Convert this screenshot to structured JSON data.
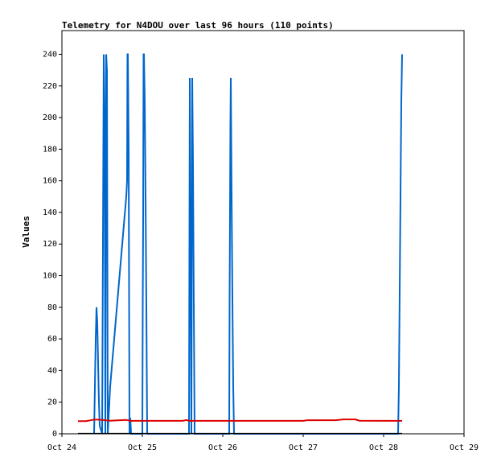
{
  "chart_data": {
    "type": "line",
    "title": "Telemetry for N4DOU over last 96 hours (110 points)",
    "xlabel": "",
    "ylabel": "Values",
    "x_ticks": [
      "Oct 24",
      "Oct 25",
      "Oct 26",
      "Oct 27",
      "Oct 28",
      "Oct 29"
    ],
    "x_range_days": [
      24,
      29
    ],
    "y_ticks": [
      0,
      20,
      40,
      60,
      80,
      100,
      120,
      140,
      160,
      180,
      200,
      220,
      240
    ],
    "ylim": [
      0,
      255
    ],
    "grid": false,
    "legend": "none",
    "series": [
      {
        "color": "#0066cc",
        "points": [
          [
            24.4,
            0
          ],
          [
            24.41,
            30
          ],
          [
            24.42,
            60
          ],
          [
            24.43,
            80
          ],
          [
            24.44,
            70
          ],
          [
            24.45,
            45
          ],
          [
            24.46,
            20
          ],
          [
            24.47,
            5
          ],
          [
            24.5,
            0
          ],
          [
            24.51,
            120
          ],
          [
            24.52,
            240
          ],
          [
            24.53,
            200
          ],
          [
            24.54,
            0
          ],
          [
            24.55,
            240
          ],
          [
            24.56,
            230
          ],
          [
            24.57,
            0
          ],
          [
            24.6,
            30
          ],
          [
            24.65,
            60
          ],
          [
            24.7,
            90
          ],
          [
            24.75,
            120
          ],
          [
            24.8,
            150
          ],
          [
            24.81,
            160
          ],
          [
            24.815,
            240
          ],
          [
            24.82,
            240
          ],
          [
            24.83,
            180
          ],
          [
            24.84,
            0
          ],
          [
            24.85,
            10
          ],
          [
            24.86,
            0
          ],
          [
            25.0,
            0
          ],
          [
            25.005,
            80
          ],
          [
            25.01,
            135
          ],
          [
            25.015,
            240
          ],
          [
            25.02,
            240
          ],
          [
            25.03,
            210
          ],
          [
            25.04,
            150
          ],
          [
            25.05,
            80
          ],
          [
            25.06,
            0
          ],
          [
            25.58,
            0
          ],
          [
            25.585,
            110
          ],
          [
            25.59,
            225
          ],
          [
            25.6,
            110
          ],
          [
            25.61,
            0
          ],
          [
            25.62,
            225
          ],
          [
            25.63,
            170
          ],
          [
            25.64,
            80
          ],
          [
            25.65,
            0
          ],
          [
            26.08,
            0
          ],
          [
            26.085,
            85
          ],
          [
            26.09,
            140
          ],
          [
            26.095,
            195
          ],
          [
            26.1,
            225
          ],
          [
            26.11,
            150
          ],
          [
            26.12,
            85
          ],
          [
            26.13,
            30
          ],
          [
            26.14,
            0
          ],
          [
            28.18,
            0
          ],
          [
            28.19,
            30
          ],
          [
            28.2,
            90
          ],
          [
            28.21,
            150
          ],
          [
            28.22,
            210
          ],
          [
            28.23,
            240
          ]
        ]
      },
      {
        "color": "#dd0000",
        "points": [
          [
            24.2,
            8
          ],
          [
            24.3,
            8
          ],
          [
            24.35,
            8.5
          ],
          [
            24.4,
            9
          ],
          [
            24.45,
            9
          ],
          [
            24.5,
            8.8
          ],
          [
            24.55,
            8.5
          ],
          [
            24.6,
            8.3
          ],
          [
            24.7,
            8.5
          ],
          [
            24.8,
            8.8
          ],
          [
            24.85,
            8.2
          ],
          [
            25.0,
            8.2
          ],
          [
            25.5,
            8.2
          ],
          [
            25.55,
            8.7
          ],
          [
            25.58,
            8.2
          ],
          [
            26.0,
            8.2
          ],
          [
            26.5,
            8.2
          ],
          [
            27.0,
            8.2
          ],
          [
            27.05,
            8.6
          ],
          [
            27.4,
            8.6
          ],
          [
            27.5,
            9.1
          ],
          [
            27.65,
            9.1
          ],
          [
            27.7,
            8.3
          ],
          [
            28.0,
            8.2
          ],
          [
            28.23,
            8.2
          ]
        ]
      },
      {
        "color": "#000000",
        "points": [
          [
            24.2,
            0.2
          ],
          [
            28.23,
            0.2
          ]
        ]
      }
    ]
  }
}
